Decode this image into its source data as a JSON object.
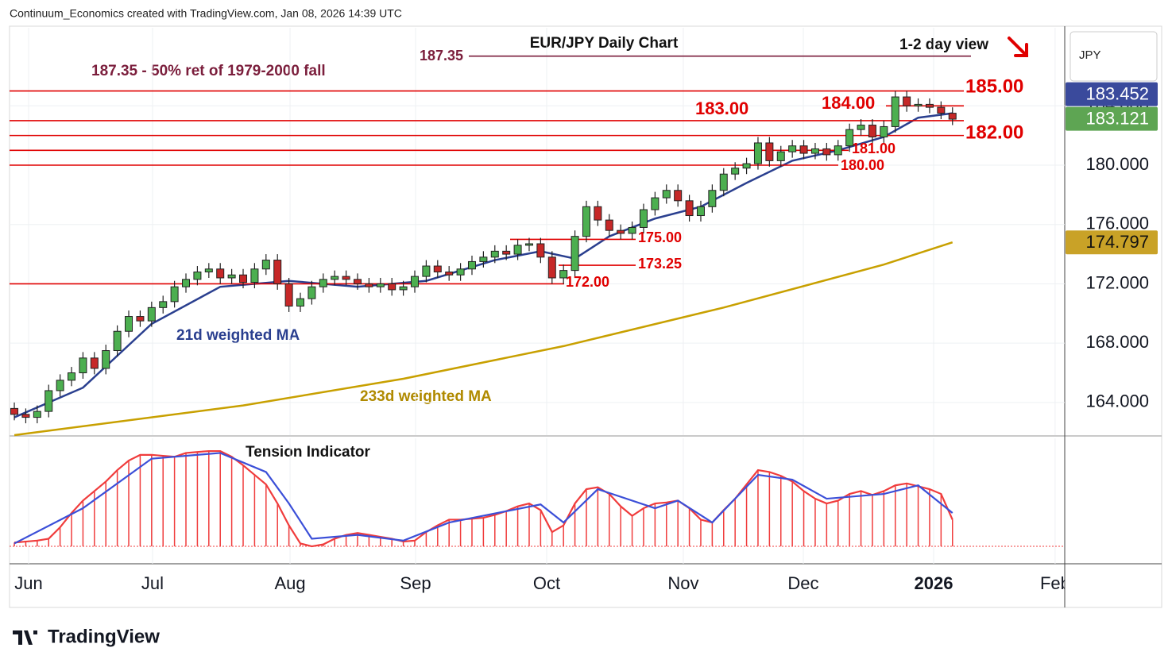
{
  "chart_data": {
    "type": "candlestick",
    "header": "Continuum_Economics created with TradingView.com, Jan 08, 2026 14:39 UTC",
    "title": "EUR/JPY Daily Chart",
    "subtitle": "1-2 day view",
    "annotation": "187.35 - 50% ret of 1979-2000 fall",
    "axis_label": "JPY",
    "logo": "TradingView",
    "xlim": [
      -0.28,
      91.81
    ],
    "xticks": [
      {
        "value": 1.25,
        "label": "Jun"
      },
      {
        "value": 12.08,
        "label": "Jul"
      },
      {
        "value": 24.1,
        "label": "Aug"
      },
      {
        "value": 35.07,
        "label": "Sep"
      },
      {
        "value": 46.53,
        "label": "Oct"
      },
      {
        "value": 58.47,
        "label": "Nov"
      },
      {
        "value": 68.96,
        "label": "Dec"
      },
      {
        "value": 80.35,
        "label": "2026"
      },
      {
        "value": 90.97,
        "label": "Feb"
      }
    ],
    "ylim": [
      161.8,
      189.26
    ],
    "yticks": [
      {
        "value": 164,
        "label": "164.000"
      },
      {
        "value": 168,
        "label": "168.000"
      },
      {
        "value": 172,
        "label": "172.000"
      },
      {
        "value": 176,
        "label": "176.000"
      },
      {
        "value": 180,
        "label": "180.000"
      },
      {
        "value": 184,
        "label": "184.000"
      }
    ],
    "grid": true,
    "series": [
      {
        "name": "EUR/JPY",
        "up_color": "#4caf50",
        "down_color": "#c62828",
        "open": [
          163.6,
          163.2,
          163.0,
          163.4,
          164.8,
          165.5,
          166.0,
          167.0,
          166.3,
          167.5,
          168.8,
          169.8,
          169.5,
          170.4,
          170.8,
          171.8,
          172.3,
          172.8,
          173.0,
          172.4,
          172.6,
          172.1,
          173.0,
          173.6,
          172.0,
          170.5,
          171.0,
          171.8,
          172.3,
          172.5,
          172.3,
          172.0,
          171.8,
          172.0,
          171.6,
          171.8,
          172.5,
          173.2,
          172.8,
          172.6,
          173.0,
          173.5,
          173.8,
          174.2,
          174.0,
          174.6,
          174.7,
          173.8,
          172.4,
          172.9,
          175.2,
          177.2,
          176.3,
          175.6,
          175.4,
          175.8,
          177.0,
          177.8,
          178.3,
          177.6,
          176.6,
          177.2,
          178.3,
          179.4,
          179.8,
          180.1,
          181.5,
          180.3,
          180.9,
          181.3,
          180.8,
          181.1,
          180.7,
          181.3,
          182.4,
          182.7,
          181.9,
          182.6,
          184.6,
          184.0,
          184.1,
          183.9,
          183.5
        ],
        "high": [
          164.0,
          163.6,
          163.8,
          165.2,
          165.9,
          166.4,
          167.4,
          167.4,
          167.9,
          169.2,
          170.2,
          170.2,
          170.8,
          171.2,
          172.2,
          172.7,
          173.2,
          173.4,
          173.4,
          173.0,
          173.0,
          173.4,
          174.0,
          174.0,
          172.4,
          171.4,
          172.2,
          172.7,
          172.9,
          172.9,
          172.7,
          172.4,
          172.4,
          172.4,
          172.2,
          172.9,
          173.6,
          173.6,
          173.2,
          173.4,
          173.9,
          174.2,
          174.6,
          174.6,
          175.0,
          175.1,
          175.1,
          174.2,
          173.3,
          175.6,
          177.6,
          177.6,
          176.7,
          176.0,
          176.2,
          177.4,
          178.2,
          178.7,
          178.7,
          178.0,
          177.6,
          178.7,
          179.8,
          180.2,
          180.5,
          181.9,
          181.9,
          181.3,
          181.7,
          181.7,
          181.5,
          181.5,
          181.7,
          182.8,
          183.1,
          183.1,
          183.0,
          185.0,
          185.0,
          184.5,
          184.5,
          184.3,
          183.9
        ],
        "low": [
          162.8,
          162.6,
          162.6,
          163.0,
          164.4,
          165.1,
          165.6,
          165.9,
          165.9,
          167.1,
          168.4,
          169.1,
          169.1,
          170.0,
          170.4,
          171.4,
          171.9,
          172.4,
          172.0,
          172.0,
          171.7,
          171.7,
          172.6,
          171.6,
          170.1,
          170.1,
          170.6,
          171.4,
          171.9,
          171.9,
          171.6,
          171.4,
          171.4,
          171.2,
          171.2,
          171.4,
          172.1,
          172.4,
          172.2,
          172.2,
          172.6,
          173.1,
          173.4,
          173.6,
          173.6,
          174.2,
          173.4,
          172.0,
          172.0,
          172.5,
          174.8,
          175.9,
          175.2,
          175.0,
          175.0,
          175.4,
          176.6,
          177.4,
          177.2,
          176.2,
          176.2,
          176.8,
          177.9,
          179.0,
          179.4,
          179.7,
          179.9,
          179.9,
          180.5,
          180.4,
          180.4,
          180.3,
          180.3,
          180.9,
          182.0,
          181.5,
          181.5,
          182.2,
          183.6,
          183.6,
          183.5,
          183.1,
          182.7
        ],
        "close": [
          163.2,
          163.0,
          163.4,
          164.8,
          165.5,
          166.0,
          167.0,
          166.3,
          167.5,
          168.8,
          169.8,
          169.5,
          170.4,
          170.8,
          171.8,
          172.3,
          172.8,
          173.0,
          172.4,
          172.6,
          172.1,
          173.0,
          173.6,
          172.0,
          170.5,
          171.0,
          171.8,
          172.3,
          172.5,
          172.3,
          172.0,
          171.8,
          172.0,
          171.6,
          171.8,
          172.5,
          173.2,
          172.8,
          172.6,
          173.0,
          173.5,
          173.8,
          174.2,
          174.0,
          174.6,
          174.7,
          173.8,
          172.4,
          172.9,
          175.2,
          177.2,
          176.3,
          175.6,
          175.4,
          175.8,
          177.0,
          177.8,
          178.3,
          177.6,
          176.6,
          177.2,
          178.3,
          179.4,
          179.8,
          180.1,
          181.5,
          180.3,
          180.9,
          181.3,
          180.8,
          181.1,
          180.7,
          181.3,
          182.4,
          182.7,
          181.9,
          182.6,
          184.6,
          184.0,
          184.1,
          183.9,
          183.5,
          183.1
        ]
      },
      {
        "name": "21d weighted MA",
        "type": "line",
        "color": "#2a3f8f",
        "x": [
          0,
          6,
          12,
          18,
          24,
          30,
          36,
          42,
          46,
          49,
          52,
          56,
          60,
          64,
          68,
          72,
          76,
          79,
          82
        ],
        "values": [
          163.0,
          165.0,
          169.3,
          171.8,
          172.2,
          171.8,
          172.2,
          173.6,
          174.2,
          173.7,
          175.2,
          176.4,
          177.2,
          178.8,
          180.3,
          181.0,
          181.9,
          183.2,
          183.5
        ]
      },
      {
        "name": "233d weighted MA",
        "type": "line",
        "color": "#c8a000",
        "x": [
          0,
          20,
          34,
          48,
          62,
          76,
          82
        ],
        "values": [
          161.8,
          163.8,
          165.6,
          167.8,
          170.4,
          173.3,
          174.8
        ]
      }
    ],
    "levels": [
      {
        "value": 187.35,
        "label": "187.35",
        "color": "#7b1e3c"
      },
      {
        "value": 185,
        "label": "185.00",
        "color": "#e00000"
      },
      {
        "value": 184,
        "label": "184.00",
        "color": "#e00000"
      },
      {
        "value": 183,
        "label": "183.00",
        "color": "#e00000"
      },
      {
        "value": 182,
        "label": "182.00",
        "color": "#e00000"
      },
      {
        "value": 181,
        "label": "181.00",
        "color": "#e00000"
      },
      {
        "value": 180,
        "label": "180.00",
        "color": "#e00000"
      },
      {
        "value": 175,
        "label": "175.00",
        "color": "#e00000"
      },
      {
        "value": 173.25,
        "label": "173.25",
        "color": "#e00000"
      },
      {
        "value": 172,
        "label": "172.00",
        "color": "#e00000"
      }
    ],
    "price_badges": [
      {
        "value": 183.452,
        "label": "183.452",
        "color": "#3a4a9c",
        "text_color": "#ffffff"
      },
      {
        "value": 183.121,
        "label": "183.121",
        "color": "#5ea553",
        "text_color": "#ffffff"
      },
      {
        "value": 174.797,
        "label": "174.797",
        "color": "#c9a227",
        "text_color": "#111111"
      }
    ],
    "indicator": {
      "name": "Tension Indicator",
      "color": "#f03c3c",
      "ylim": [
        -18.3,
        106.7
      ],
      "values": [
        4,
        5,
        6,
        8,
        20,
        35,
        48,
        58,
        68,
        80,
        90,
        96,
        96,
        95,
        94,
        98,
        99,
        100,
        100,
        94,
        85,
        75,
        65,
        45,
        22,
        3,
        0,
        2,
        8,
        12,
        14,
        12,
        10,
        8,
        5,
        6,
        15,
        22,
        28,
        28,
        29,
        30,
        33,
        37,
        42,
        45,
        38,
        15,
        22,
        45,
        60,
        62,
        55,
        42,
        32,
        40,
        45,
        46,
        48,
        40,
        28,
        25,
        38,
        50,
        65,
        80,
        78,
        74,
        68,
        58,
        50,
        45,
        48,
        55,
        58,
        54,
        58,
        64,
        66,
        63,
        60,
        55,
        28
      ],
      "signal": {
        "color": "#3b4fd8",
        "x": [
          0,
          6,
          12,
          18,
          22,
          24,
          26,
          30,
          34,
          38,
          46,
          48,
          51,
          56,
          58,
          61,
          65,
          68,
          71,
          76,
          79,
          82
        ],
        "values": [
          3,
          40,
          92,
          98,
          78,
          45,
          8,
          12,
          6,
          25,
          44,
          25,
          60,
          40,
          48,
          25,
          75,
          70,
          50,
          55,
          64,
          35
        ]
      }
    }
  }
}
